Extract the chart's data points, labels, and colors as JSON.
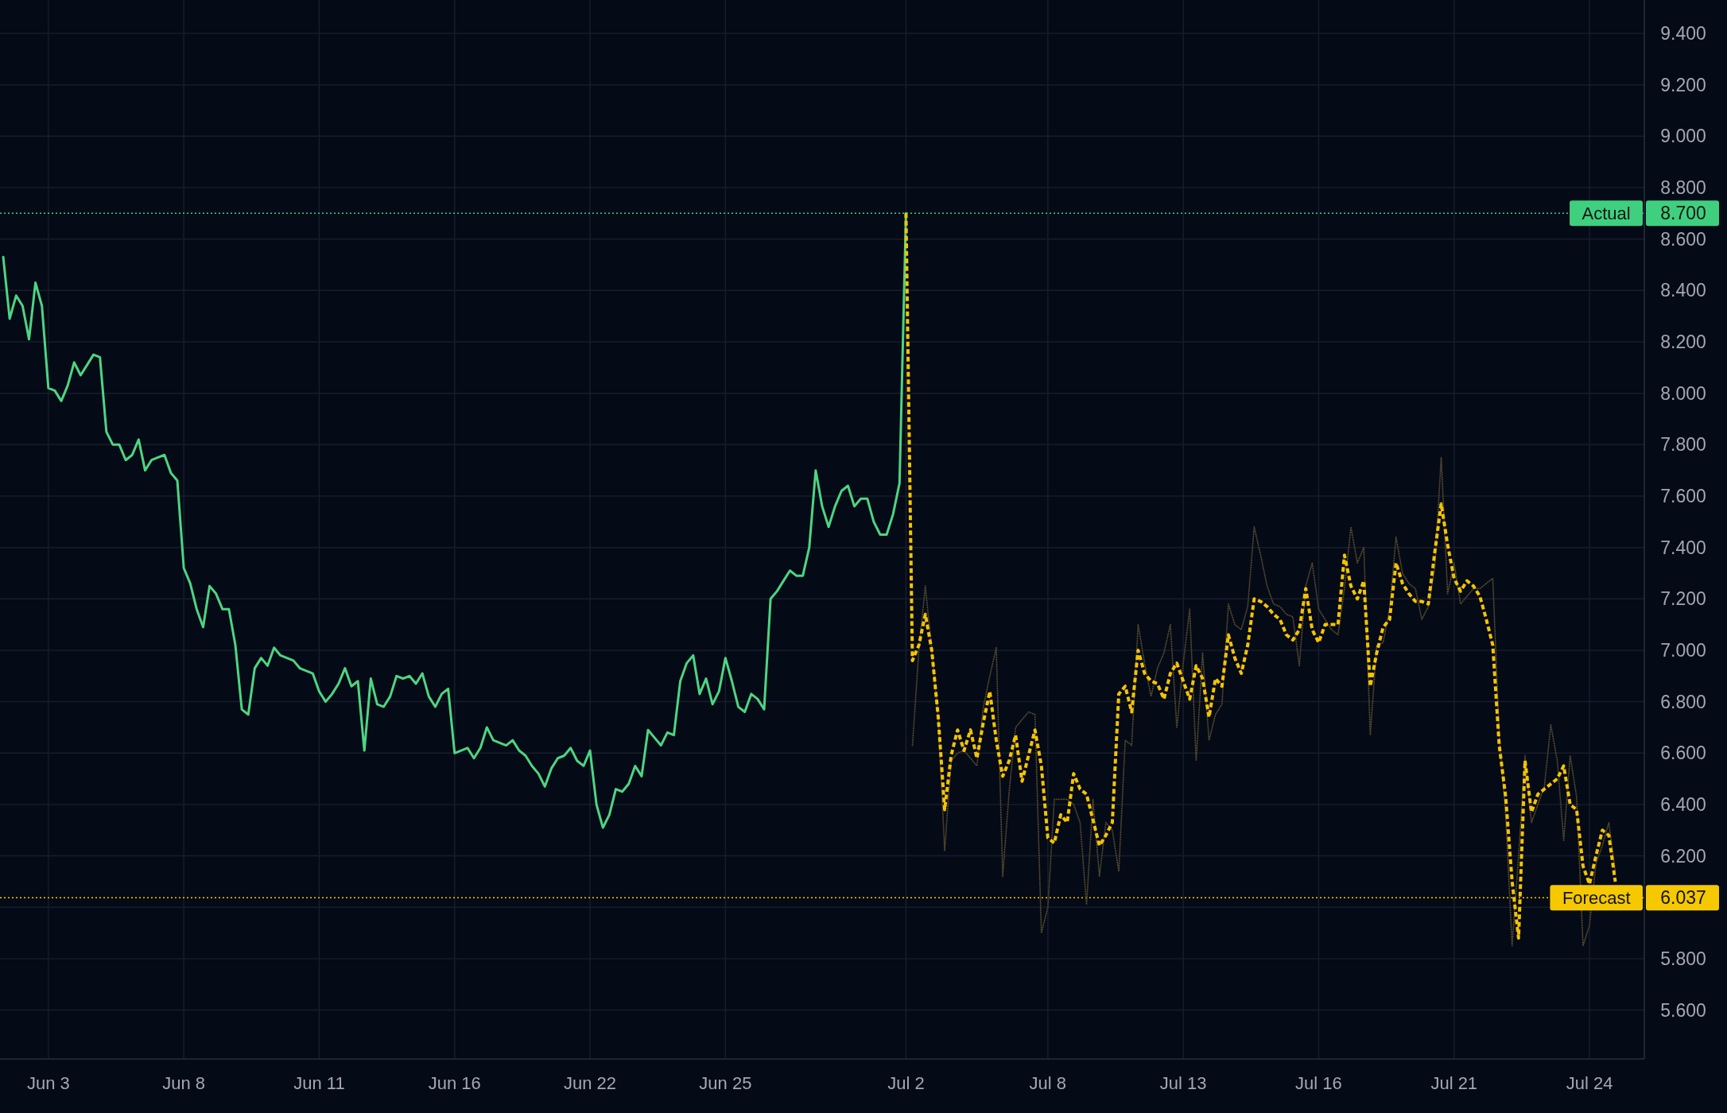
{
  "chart_data": {
    "type": "line",
    "categories": [
      null,
      null,
      null,
      null,
      null,
      null,
      null,
      "Jun 3",
      null,
      null,
      null,
      null,
      null,
      null,
      null,
      null,
      null,
      null,
      null,
      null,
      null,
      null,
      null,
      null,
      null,
      null,
      null,
      null,
      "Jun 8",
      null,
      null,
      null,
      null,
      null,
      null,
      null,
      null,
      null,
      null,
      null,
      null,
      null,
      null,
      null,
      null,
      null,
      null,
      null,
      null,
      "Jun 11",
      null,
      null,
      null,
      null,
      null,
      null,
      null,
      null,
      null,
      null,
      null,
      null,
      null,
      null,
      null,
      null,
      null,
      null,
      null,
      null,
      "Jun 16",
      null,
      null,
      null,
      null,
      null,
      null,
      null,
      null,
      null,
      null,
      null,
      null,
      null,
      null,
      null,
      null,
      null,
      null,
      null,
      null,
      "Jun 22",
      null,
      null,
      null,
      null,
      null,
      null,
      null,
      null,
      null,
      null,
      null,
      null,
      null,
      null,
      null,
      null,
      null,
      null,
      null,
      null,
      "Jun 25",
      null,
      null,
      null,
      null,
      null,
      null,
      null,
      null,
      null,
      null,
      null,
      null,
      null,
      null,
      null,
      null,
      null,
      null,
      null,
      null,
      null,
      null,
      null,
      null,
      null,
      null,
      null,
      "Jul 2",
      null,
      null,
      null,
      null,
      null,
      null,
      null,
      null,
      null,
      null,
      null,
      null,
      null,
      null,
      null,
      null,
      null,
      null,
      null,
      null,
      null,
      "Jul 8",
      null,
      null,
      null,
      null,
      null,
      null,
      null,
      null,
      null,
      null,
      null,
      null,
      null,
      null,
      null,
      null,
      null,
      null,
      null,
      null,
      "Jul 13",
      null,
      null,
      null,
      null,
      null,
      null,
      null,
      null,
      null,
      null,
      null,
      null,
      null,
      null,
      null,
      null,
      null,
      null,
      null,
      null,
      "Jul 16",
      null,
      null,
      null,
      null,
      null,
      null,
      null,
      null,
      null,
      null,
      null,
      null,
      null,
      null,
      null,
      null,
      null,
      null,
      null,
      null,
      "Jul 21",
      null,
      null,
      null,
      null,
      null,
      null,
      null,
      null,
      null,
      null,
      null,
      null,
      null,
      null,
      null,
      null,
      null,
      null,
      null,
      null,
      "Jul 24",
      null,
      null,
      null,
      null,
      null,
      null,
      null,
      null
    ],
    "ylim": [
      5.41,
      9.53
    ],
    "yticks": [
      {
        "value": 5.6,
        "label": "5.600"
      },
      {
        "value": 5.8,
        "label": "5.800"
      },
      {
        "value": 6.0,
        "label": null
      },
      {
        "value": 6.2,
        "label": "6.200"
      },
      {
        "value": 6.4,
        "label": "6.400"
      },
      {
        "value": 6.6,
        "label": "6.600"
      },
      {
        "value": 6.8,
        "label": "6.800"
      },
      {
        "value": 7.0,
        "label": "7.000"
      },
      {
        "value": 7.2,
        "label": "7.200"
      },
      {
        "value": 7.4,
        "label": "7.400"
      },
      {
        "value": 7.6,
        "label": "7.600"
      },
      {
        "value": 7.8,
        "label": "7.800"
      },
      {
        "value": 8.0,
        "label": "8.000"
      },
      {
        "value": 8.2,
        "label": "8.200"
      },
      {
        "value": 8.4,
        "label": "8.400"
      },
      {
        "value": 8.6,
        "label": "8.600"
      },
      {
        "value": 8.8,
        "label": "8.800"
      },
      {
        "value": 9.0,
        "label": "9.000"
      },
      {
        "value": 9.2,
        "label": "9.200"
      },
      {
        "value": 9.4,
        "label": "9.400"
      }
    ],
    "grid": true,
    "series": [
      {
        "color": "#4cd682",
        "line_style": "solid",
        "values": [
          8.53,
          8.29,
          8.38,
          8.34,
          8.21,
          8.43,
          8.34,
          8.02,
          8.01,
          7.97,
          8.03,
          8.12,
          8.07,
          8.11,
          8.15,
          8.14,
          7.85,
          7.8,
          7.8,
          7.74,
          7.76,
          7.82,
          7.7,
          7.74,
          7.75,
          7.76,
          7.69,
          7.66,
          7.32,
          7.26,
          7.16,
          7.09,
          7.25,
          7.22,
          7.16,
          7.16,
          7.02,
          6.77,
          6.75,
          6.93,
          6.97,
          6.94,
          7.01,
          6.98,
          6.97,
          6.96,
          6.93,
          6.92,
          6.91,
          6.84,
          6.8,
          6.83,
          6.87,
          6.93,
          6.86,
          6.88,
          6.61,
          6.89,
          6.79,
          6.78,
          6.82,
          6.9,
          6.89,
          6.9,
          6.87,
          6.91,
          6.82,
          6.78,
          6.83,
          6.85,
          6.6,
          6.61,
          6.62,
          6.58,
          6.62,
          6.7,
          6.65,
          6.64,
          6.63,
          6.65,
          6.61,
          6.59,
          6.55,
          6.52,
          6.47,
          6.54,
          6.58,
          6.59,
          6.62,
          6.57,
          6.55,
          6.61,
          6.4,
          6.31,
          6.36,
          6.46,
          6.45,
          6.48,
          6.55,
          6.51,
          6.69,
          6.66,
          6.63,
          6.68,
          6.67,
          6.88,
          6.95,
          6.98,
          6.83,
          6.89,
          6.79,
          6.84,
          6.97,
          6.88,
          6.78,
          6.76,
          6.83,
          6.81,
          6.77,
          7.2,
          7.23,
          7.27,
          7.31,
          7.29,
          7.29,
          7.4,
          7.7,
          7.56,
          7.48,
          7.56,
          7.62,
          7.64,
          7.56,
          7.59,
          7.59,
          7.5,
          7.45,
          7.45,
          7.53,
          7.65,
          8.7,
          null,
          null,
          null,
          null,
          null,
          null,
          null,
          null,
          null,
          null,
          null,
          null,
          null,
          null,
          null,
          null,
          null,
          null,
          null,
          null,
          null,
          null,
          null,
          null,
          null,
          null,
          null,
          null,
          null,
          null,
          null,
          null,
          null,
          null,
          null,
          null,
          null,
          null,
          null,
          null,
          null,
          null,
          null,
          null,
          null,
          null,
          null,
          null,
          null,
          null,
          null,
          null,
          null,
          null,
          null,
          null,
          null,
          null,
          null,
          null,
          null,
          null,
          null,
          null,
          null,
          null,
          null,
          null,
          null,
          null,
          null,
          null,
          null,
          null,
          null,
          null,
          null,
          null,
          null,
          null,
          null,
          null,
          null,
          null,
          null,
          null,
          null,
          null,
          null,
          null,
          null,
          null,
          null,
          null,
          null,
          null,
          null,
          null,
          null,
          null,
          null,
          null,
          null,
          null,
          null,
          null,
          null,
          null,
          null,
          null,
          null,
          null,
          null,
          null
        ]
      },
      {
        "color": "#4d462b",
        "line_style": "dotted",
        "values": [
          null,
          null,
          null,
          null,
          null,
          null,
          null,
          null,
          null,
          null,
          null,
          null,
          null,
          null,
          null,
          null,
          null,
          null,
          null,
          null,
          null,
          null,
          null,
          null,
          null,
          null,
          null,
          null,
          null,
          null,
          null,
          null,
          null,
          null,
          null,
          null,
          null,
          null,
          null,
          null,
          null,
          null,
          null,
          null,
          null,
          null,
          null,
          null,
          null,
          null,
          null,
          null,
          null,
          null,
          null,
          null,
          null,
          null,
          null,
          null,
          null,
          null,
          null,
          null,
          null,
          null,
          null,
          null,
          null,
          null,
          null,
          null,
          null,
          null,
          null,
          null,
          null,
          null,
          null,
          null,
          null,
          null,
          null,
          null,
          null,
          null,
          null,
          null,
          null,
          null,
          null,
          null,
          null,
          null,
          null,
          null,
          null,
          null,
          null,
          null,
          null,
          null,
          null,
          null,
          null,
          null,
          null,
          null,
          null,
          null,
          null,
          null,
          null,
          null,
          null,
          null,
          null,
          null,
          null,
          null,
          null,
          null,
          null,
          null,
          null,
          null,
          null,
          null,
          null,
          null,
          null,
          null,
          null,
          null,
          null,
          null,
          null,
          null,
          null,
          null,
          null,
          6.63,
          7.0,
          7.25,
          7.0,
          6.74,
          6.22,
          6.57,
          6.6,
          6.61,
          6.58,
          6.55,
          6.78,
          6.9,
          7.01,
          6.12,
          6.45,
          6.7,
          6.73,
          6.76,
          6.75,
          5.9,
          6.0,
          6.42,
          6.42,
          6.42,
          6.4,
          6.33,
          6.01,
          6.42,
          6.12,
          6.33,
          6.3,
          6.14,
          6.65,
          6.63,
          7.1,
          6.95,
          6.82,
          6.93,
          6.99,
          7.1,
          6.7,
          6.95,
          7.16,
          6.57,
          6.99,
          6.65,
          6.75,
          6.79,
          7.18,
          7.1,
          7.08,
          7.17,
          7.48,
          7.37,
          7.25,
          7.18,
          7.17,
          7.14,
          7.13,
          6.94,
          7.25,
          7.34,
          7.16,
          7.12,
          7.08,
          7.06,
          7.24,
          7.48,
          7.34,
          7.4,
          6.67,
          7.02,
          7.03,
          7.16,
          7.44,
          7.3,
          7.26,
          7.24,
          7.12,
          7.17,
          7.32,
          7.75,
          7.22,
          7.34,
          7.18,
          7.21,
          7.24,
          7.24,
          7.26,
          7.28,
          6.67,
          6.36,
          5.85,
          6.2,
          6.59,
          6.33,
          6.4,
          6.47,
          6.71,
          6.57,
          6.26,
          6.59,
          6.43,
          5.85,
          5.93,
          6.17,
          6.24,
          6.33,
          6.14,
          null,
          null,
          null,
          null
        ]
      },
      {
        "color": "#f5c400",
        "line_style": "dashed",
        "values": [
          null,
          null,
          null,
          null,
          null,
          null,
          null,
          null,
          null,
          null,
          null,
          null,
          null,
          null,
          null,
          null,
          null,
          null,
          null,
          null,
          null,
          null,
          null,
          null,
          null,
          null,
          null,
          null,
          null,
          null,
          null,
          null,
          null,
          null,
          null,
          null,
          null,
          null,
          null,
          null,
          null,
          null,
          null,
          null,
          null,
          null,
          null,
          null,
          null,
          null,
          null,
          null,
          null,
          null,
          null,
          null,
          null,
          null,
          null,
          null,
          null,
          null,
          null,
          null,
          null,
          null,
          null,
          null,
          null,
          null,
          null,
          null,
          null,
          null,
          null,
          null,
          null,
          null,
          null,
          null,
          null,
          null,
          null,
          null,
          null,
          null,
          null,
          null,
          null,
          null,
          null,
          null,
          null,
          null,
          null,
          null,
          null,
          null,
          null,
          null,
          null,
          null,
          null,
          null,
          null,
          null,
          null,
          null,
          null,
          null,
          null,
          null,
          null,
          null,
          null,
          null,
          null,
          null,
          null,
          null,
          null,
          null,
          null,
          null,
          null,
          null,
          null,
          null,
          null,
          null,
          null,
          null,
          null,
          null,
          null,
          null,
          null,
          null,
          null,
          null,
          8.7,
          6.96,
          7.02,
          7.14,
          7.0,
          6.74,
          6.38,
          6.59,
          6.69,
          6.61,
          6.69,
          6.58,
          6.72,
          6.84,
          6.65,
          6.51,
          6.57,
          6.67,
          6.49,
          6.59,
          6.69,
          6.55,
          6.27,
          6.25,
          6.36,
          6.33,
          6.52,
          6.46,
          6.44,
          6.34,
          6.24,
          6.28,
          6.33,
          6.83,
          6.86,
          6.76,
          7.0,
          6.91,
          6.88,
          6.87,
          6.81,
          6.91,
          6.95,
          6.88,
          6.81,
          6.94,
          6.89,
          6.74,
          6.89,
          6.86,
          7.06,
          6.97,
          6.91,
          7.02,
          7.2,
          7.19,
          7.17,
          7.14,
          7.12,
          7.06,
          7.04,
          7.08,
          7.24,
          7.08,
          7.03,
          7.1,
          7.1,
          7.1,
          7.37,
          7.25,
          7.2,
          7.27,
          6.86,
          6.99,
          7.09,
          7.12,
          7.34,
          7.26,
          7.22,
          7.19,
          7.19,
          7.18,
          7.38,
          7.57,
          7.41,
          7.28,
          7.23,
          7.27,
          7.25,
          7.21,
          7.12,
          7.02,
          6.63,
          6.43,
          6.1,
          5.88,
          6.57,
          6.37,
          6.44,
          6.46,
          6.48,
          6.5,
          6.55,
          6.4,
          6.38,
          6.16,
          6.09,
          6.2,
          6.3,
          6.28,
          6.1,
          null,
          null,
          null,
          null
        ]
      }
    ],
    "ref_lines": [
      {
        "axis": "y",
        "value": 8.7,
        "label": "Actual",
        "color": "#3fd07f",
        "line_style": "dotted"
      },
      {
        "axis": "y",
        "value": 6.037,
        "label": "Forecast",
        "color": "#f5c800",
        "line_style": "dotted"
      }
    ],
    "annotations": [
      "8.700",
      "6.037"
    ]
  }
}
